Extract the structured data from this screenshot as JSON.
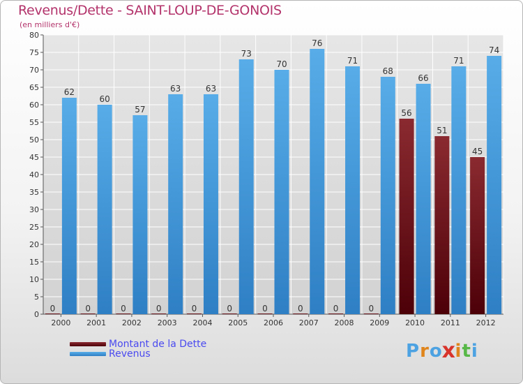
{
  "chart_data": {
    "type": "bar",
    "title": "Revenus/Dette - SAINT-LOUP-DE-GONOIS",
    "subtitle": "(en milliers d'€)",
    "categories": [
      "2000",
      "2001",
      "2002",
      "2003",
      "2004",
      "2005",
      "2006",
      "2007",
      "2008",
      "2009",
      "2010",
      "2011",
      "2012"
    ],
    "series": [
      {
        "name": "Montant de la Dette",
        "values": [
          0,
          0,
          0,
          0,
          0,
          0,
          0,
          0,
          0,
          0,
          56,
          51,
          45
        ],
        "color": "#6b0d14"
      },
      {
        "name": "Revenus",
        "values": [
          62,
          60,
          57,
          63,
          63,
          73,
          70,
          76,
          71,
          68,
          66,
          71,
          74
        ],
        "color": "#4da3e2"
      }
    ],
    "ylim": [
      0,
      80
    ],
    "yticks": [
      0,
      5,
      10,
      15,
      20,
      25,
      30,
      35,
      40,
      45,
      50,
      55,
      60,
      65,
      70,
      75,
      80
    ],
    "grid": true,
    "legend": "bottom-left",
    "data_labels": true
  },
  "colors": {
    "title": "#b3336b",
    "legend_text": "#4a4af0",
    "grid": "#ffffff",
    "plot_bg": "#dcdcdc"
  },
  "logo": {
    "letters": [
      "P",
      "r",
      "o",
      "x",
      "i",
      "t",
      "i"
    ],
    "colors": [
      "#4da3e2",
      "#e0851c",
      "#4da3e2",
      "#d8342c",
      "#e0851c",
      "#57b847",
      "#4da3e2"
    ]
  }
}
